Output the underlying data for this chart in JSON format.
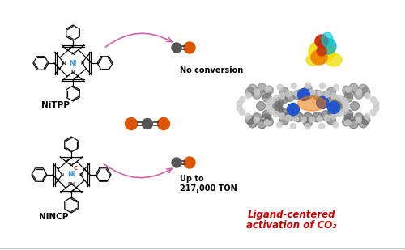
{
  "background_color": "#ffffff",
  "arrow_color": "#cc66aa",
  "text_color_red": "#cc0000",
  "text_color_black": "#000000",
  "ni_color": "#4499dd",
  "c_color": "#dd2200",
  "label_nitpp": "NiTPP",
  "label_nincp": "NiNCP",
  "label_no_conversion": "No conversion",
  "label_upto": "Up to",
  "label_ton": "217,000 TON",
  "label_ligand1": "Ligand-centered",
  "label_ligand2": "activation of CO₂",
  "co2_o_color": "#dd5500",
  "co2_c_color": "#555555",
  "co_c_color": "#555555",
  "co_o_color": "#dd5500",
  "atom_gray": "#777777",
  "atom_white": "#dddddd",
  "atom_blue": "#2255cc",
  "blob_yellow": "#eedd00",
  "blob_orange": "#ee7700",
  "blob_red": "#cc2200",
  "blob_cyan": "#00aacc"
}
